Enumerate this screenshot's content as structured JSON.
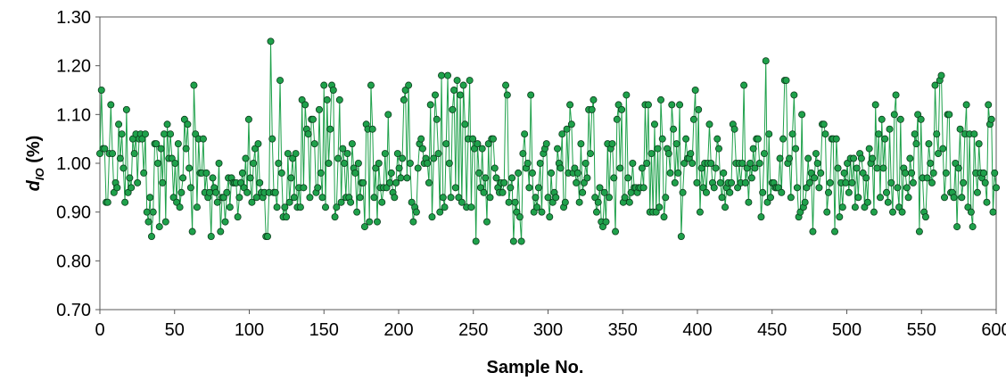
{
  "chart_data": {
    "type": "line",
    "xlabel": "Sample No.",
    "ylabel": "d",
    "ylabel_sub": "IO",
    "ylabel_suffix": " (%)",
    "xlim": [
      0,
      600
    ],
    "ylim": [
      0.7,
      1.3
    ],
    "xticks": [
      "0",
      "50",
      "100",
      "150",
      "200",
      "250",
      "300",
      "350",
      "400",
      "450",
      "500",
      "550",
      "600"
    ],
    "yticks": [
      "0.70",
      "0.80",
      "0.90",
      "1.00",
      "1.10",
      "1.20",
      "1.30"
    ],
    "grid": false,
    "legend": "none",
    "series_color": "#1fa14b",
    "marker_edge": "#0b3d1c",
    "y": [
      1.02,
      1.15,
      1.03,
      1.03,
      0.92,
      0.92,
      1.02,
      1.12,
      1.02,
      0.94,
      0.96,
      0.95,
      1.08,
      1.01,
      1.06,
      0.99,
      0.92,
      1.11,
      0.94,
      0.97,
      0.95,
      1.05,
      1.02,
      1.06,
      0.96,
      1.05,
      1.06,
      1.05,
      0.98,
      1.06,
      0.9,
      0.88,
      0.93,
      0.85,
      0.9,
      1.04,
      1.04,
      1.0,
      0.87,
      1.03,
      0.96,
      1.06,
      0.88,
      1.08,
      1.01,
      1.06,
      1.01,
      0.93,
      1.0,
      0.92,
      1.04,
      0.91,
      0.94,
      0.97,
      1.09,
      1.03,
      1.08,
      0.99,
      0.95,
      0.86,
      1.16,
      1.06,
      0.91,
      1.05,
      0.98,
      0.98,
      1.05,
      0.94,
      0.98,
      0.93,
      0.94,
      0.85,
      0.97,
      0.95,
      0.94,
      0.92,
      1.0,
      0.86,
      0.93,
      0.93,
      0.88,
      0.94,
      0.97,
      0.91,
      0.97,
      0.96,
      0.96,
      0.96,
      0.89,
      0.93,
      0.96,
      0.98,
      0.95,
      1.01,
      0.94,
      1.09,
      0.97,
      0.92,
      1.0,
      1.03,
      0.93,
      1.04,
      0.96,
      0.94,
      0.93,
      0.94,
      0.85,
      0.85,
      0.94,
      1.25,
      1.05,
      0.94,
      0.94,
      0.91,
      1.0,
      1.17,
      0.98,
      0.89,
      0.91,
      0.89,
      1.02,
      0.92,
      0.97,
      1.01,
      0.93,
      1.02,
      0.91,
      0.95,
      0.91,
      1.13,
      0.95,
      1.12,
      1.07,
      1.06,
      0.93,
      1.09,
      1.09,
      1.04,
      0.94,
      0.95,
      1.11,
      0.98,
      0.93,
      1.16,
      0.91,
      1.13,
      1.0,
      1.07,
      1.16,
      1.15,
      0.89,
      0.91,
      1.01,
      1.13,
      0.92,
      1.03,
      1.0,
      0.93,
      1.02,
      0.93,
      0.92,
      1.04,
      0.99,
      0.98,
      0.9,
      1.0,
      0.93,
      0.96,
      0.96,
      0.87,
      1.08,
      1.07,
      0.88,
      1.16,
      1.07,
      0.93,
      0.99,
      0.88,
      1.0,
      0.95,
      0.92,
      0.95,
      1.02,
      0.95,
      1.1,
      0.96,
      0.98,
      0.94,
      0.93,
      0.96,
      1.02,
      0.99,
      0.97,
      1.01,
      1.13,
      1.15,
      0.97,
      1.16,
      1.0,
      0.92,
      0.88,
      0.91,
      0.9,
      0.99,
      1.04,
      1.05,
      1.03,
      1.0,
      1.01,
      1.0,
      0.96,
      1.12,
      0.89,
      1.01,
      1.14,
      1.09,
      1.02,
      0.9,
      1.18,
      0.93,
      0.91,
      1.04,
      1.18,
      1.0,
      0.93,
      1.11,
      1.15,
      0.95,
      1.17,
      0.93,
      1.14,
      0.92,
      1.16,
      1.08,
      0.91,
      1.05,
      1.17,
      0.91,
      1.05,
      1.03,
      0.84,
      1.04,
      0.98,
      0.95,
      1.03,
      0.94,
      0.97,
      0.88,
      1.04,
      0.93,
      1.05,
      1.05,
      0.99,
      0.97,
      0.95,
      0.94,
      0.96,
      0.94,
      0.96,
      1.16,
      1.14,
      0.92,
      0.95,
      0.97,
      0.84,
      0.92,
      0.9,
      0.98,
      0.89,
      0.84,
      1.02,
      1.06,
      0.99,
      1.0,
      0.95,
      1.14,
      0.98,
      0.9,
      0.93,
      0.91,
      0.95,
      1.0,
      0.9,
      1.02,
      1.03,
      1.04,
      0.93,
      0.89,
      0.98,
      0.92,
      0.94,
      0.93,
      1.03,
      1.0,
      0.99,
      1.06,
      0.91,
      0.92,
      1.07,
      0.98,
      1.12,
      1.08,
      0.98,
      0.99,
      0.96,
      0.98,
      0.92,
      1.04,
      0.94,
      0.96,
      1.0,
      0.97,
      1.11,
      1.02,
      1.11,
      1.13,
      0.93,
      0.9,
      0.92,
      0.95,
      0.88,
      0.87,
      0.94,
      0.88,
      1.04,
      0.93,
      1.03,
      1.04,
      0.97,
      0.86,
      1.09,
      1.12,
      0.99,
      1.11,
      0.92,
      0.93,
      1.14,
      0.97,
      0.92,
      0.94,
      1.0,
      0.95,
      0.95,
      0.94,
      0.95,
      0.95,
      0.99,
      0.95,
      1.12,
      1.0,
      1.12,
      0.9,
      1.02,
      0.9,
      1.08,
      0.9,
      1.03,
      0.91,
      1.13,
      1.05,
      0.89,
      0.93,
      1.03,
      1.02,
      0.98,
      1.12,
      1.07,
      0.96,
      1.04,
      0.98,
      1.12,
      0.85,
      0.94,
      1.0,
      1.05,
      1.01,
      1.01,
      1.02,
      1.0,
      1.09,
      1.15,
      0.96,
      1.11,
      0.9,
      0.99,
      0.95,
      1.0,
      0.94,
      1.0,
      1.08,
      1.0,
      0.96,
      0.95,
      0.99,
      1.05,
      1.03,
      0.96,
      0.93,
      0.98,
      0.91,
      0.95,
      0.96,
      0.94,
      0.96,
      1.08,
      1.07,
      1.0,
      0.95,
      1.0,
      0.96,
      1.0,
      1.16,
      0.96,
      0.99,
      0.92,
      1.0,
      0.97,
      1.03,
      0.99,
      1.05,
      1.05,
      1.0,
      0.89,
      0.94,
      1.02,
      1.21,
      0.92,
      1.06,
      0.93,
      0.96,
      0.96,
      0.95,
      0.95,
      0.95,
      1.01,
      0.94,
      1.05,
      1.17,
      1.17,
      1.0,
      1.01,
      0.93,
      1.06,
      1.14,
      1.03,
      0.95,
      0.89,
      0.9,
      1.1,
      0.91,
      0.92,
      0.95,
      1.01,
      0.96,
      0.98,
      0.86,
      0.97,
      1.02,
      1.0,
      0.95,
      0.98,
      1.08,
      1.08,
      1.06,
      0.9,
      0.94,
      0.96,
      1.05,
      1.05,
      0.86,
      1.05,
      0.99,
      0.89,
      0.96,
      0.91,
      0.98,
      0.96,
      1.0,
      0.94,
      1.01,
      0.96,
      1.01,
      0.91,
      0.99,
      0.93,
      1.02,
      1.01,
      0.98,
      0.91,
      0.97,
      0.92,
      1.03,
      1.0,
      1.01,
      0.9,
      1.12,
      0.99,
      1.06,
      0.93,
      1.09,
      0.99,
      1.05,
      0.94,
      0.92,
      1.07,
      0.96,
      0.9,
      1.1,
      1.14,
      0.95,
      0.91,
      1.09,
      0.9,
      0.99,
      0.98,
      0.95,
      0.93,
      1.01,
      0.98,
      0.96,
      1.06,
      1.04,
      1.1,
      0.86,
      1.09,
      0.97,
      0.9,
      0.89,
      0.97,
      1.04,
      1.0,
      0.96,
      0.98,
      1.16,
      1.06,
      1.02,
      1.17,
      1.18,
      1.03,
      0.93,
      0.98,
      1.1,
      1.1,
      0.94,
      0.94,
      0.93,
      1.0,
      0.87,
      0.99,
      1.07,
      0.93,
      0.96,
      1.06,
      1.12,
      0.91,
      1.06,
      0.9,
      0.87,
      1.06,
      0.98,
      0.94,
      1.04,
      0.98,
      0.97,
      0.98,
      0.96,
      0.92,
      1.12,
      1.08,
      1.09,
      0.9,
      0.98,
      0.95
    ]
  }
}
